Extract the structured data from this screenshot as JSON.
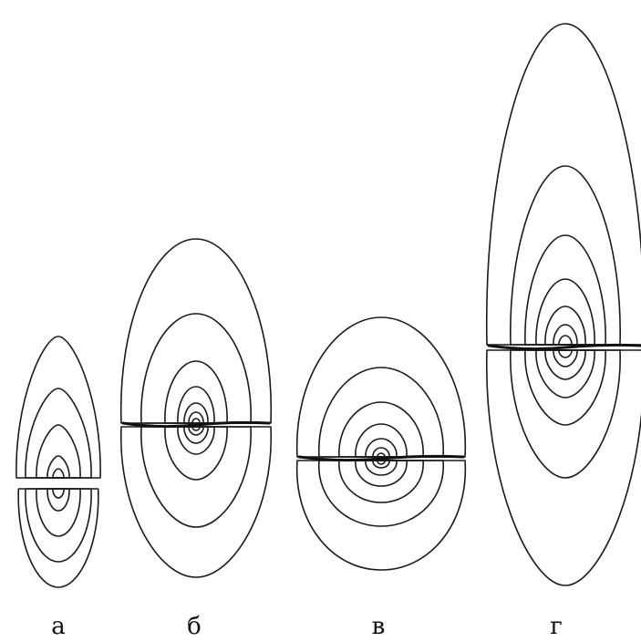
{
  "panels": [
    {
      "id": "a",
      "label": "а"
    },
    {
      "id": "b",
      "label": "б"
    },
    {
      "id": "v",
      "label": "в"
    },
    {
      "id": "g",
      "label": "г"
    }
  ]
}
